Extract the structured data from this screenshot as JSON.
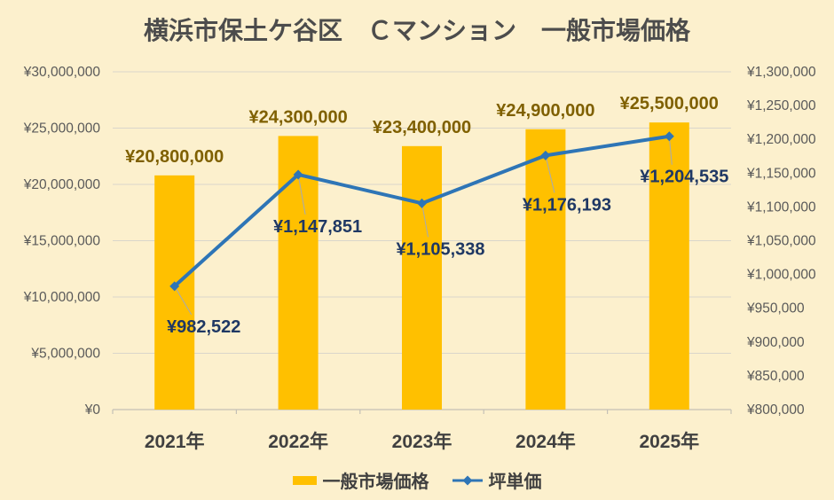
{
  "chart_data": {
    "type": "combo",
    "title": "横浜市保土ケ谷区　Ｃマンション　一般市場価格",
    "categories": [
      "2021年",
      "2022年",
      "2023年",
      "2024年",
      "2025年"
    ],
    "series": [
      {
        "name": "一般市場価格",
        "type": "bar",
        "axis": "left",
        "color": "#FFC000",
        "label_color": "#7F6000",
        "values": [
          20800000,
          24300000,
          23400000,
          24900000,
          25500000
        ],
        "labels": [
          "¥20,800,000",
          "¥24,300,000",
          "¥23,400,000",
          "¥24,900,000",
          "¥25,500,000"
        ]
      },
      {
        "name": "坪単価",
        "type": "line",
        "axis": "right",
        "color": "#2E75B6",
        "label_color": "#1F3864",
        "values": [
          982522,
          1147851,
          1105338,
          1176193,
          1204535
        ],
        "labels": [
          "¥982,522",
          "¥1,147,851",
          "¥1,105,338",
          "¥1,176,193",
          "¥1,204,535"
        ]
      }
    ],
    "left_axis": {
      "min": 0,
      "max": 30000000,
      "step": 5000000,
      "tick_labels": [
        "¥0",
        "¥5,000,000",
        "¥10,000,000",
        "¥15,000,000",
        "¥20,000,000",
        "¥25,000,000",
        "¥30,000,000"
      ]
    },
    "right_axis": {
      "min": 800000,
      "max": 1300000,
      "step": 50000,
      "tick_labels": [
        "¥800,000",
        "¥850,000",
        "¥900,000",
        "¥950,000",
        "¥1,000,000",
        "¥1,050,000",
        "¥1,100,000",
        "¥1,150,000",
        "¥1,200,000",
        "¥1,250,000",
        "¥1,300,000"
      ]
    },
    "legend_position": "bottom",
    "grid": true,
    "colors": {
      "background": "#FCF0CD",
      "gridline": "#DAD6CB",
      "axis_line": "#C4C0B6",
      "tick_label": "#595959",
      "category_label": "#404040",
      "title": "#4C4C4C",
      "legend_text": "#3F3F3F",
      "leader_line": "#A3A9B8"
    }
  }
}
